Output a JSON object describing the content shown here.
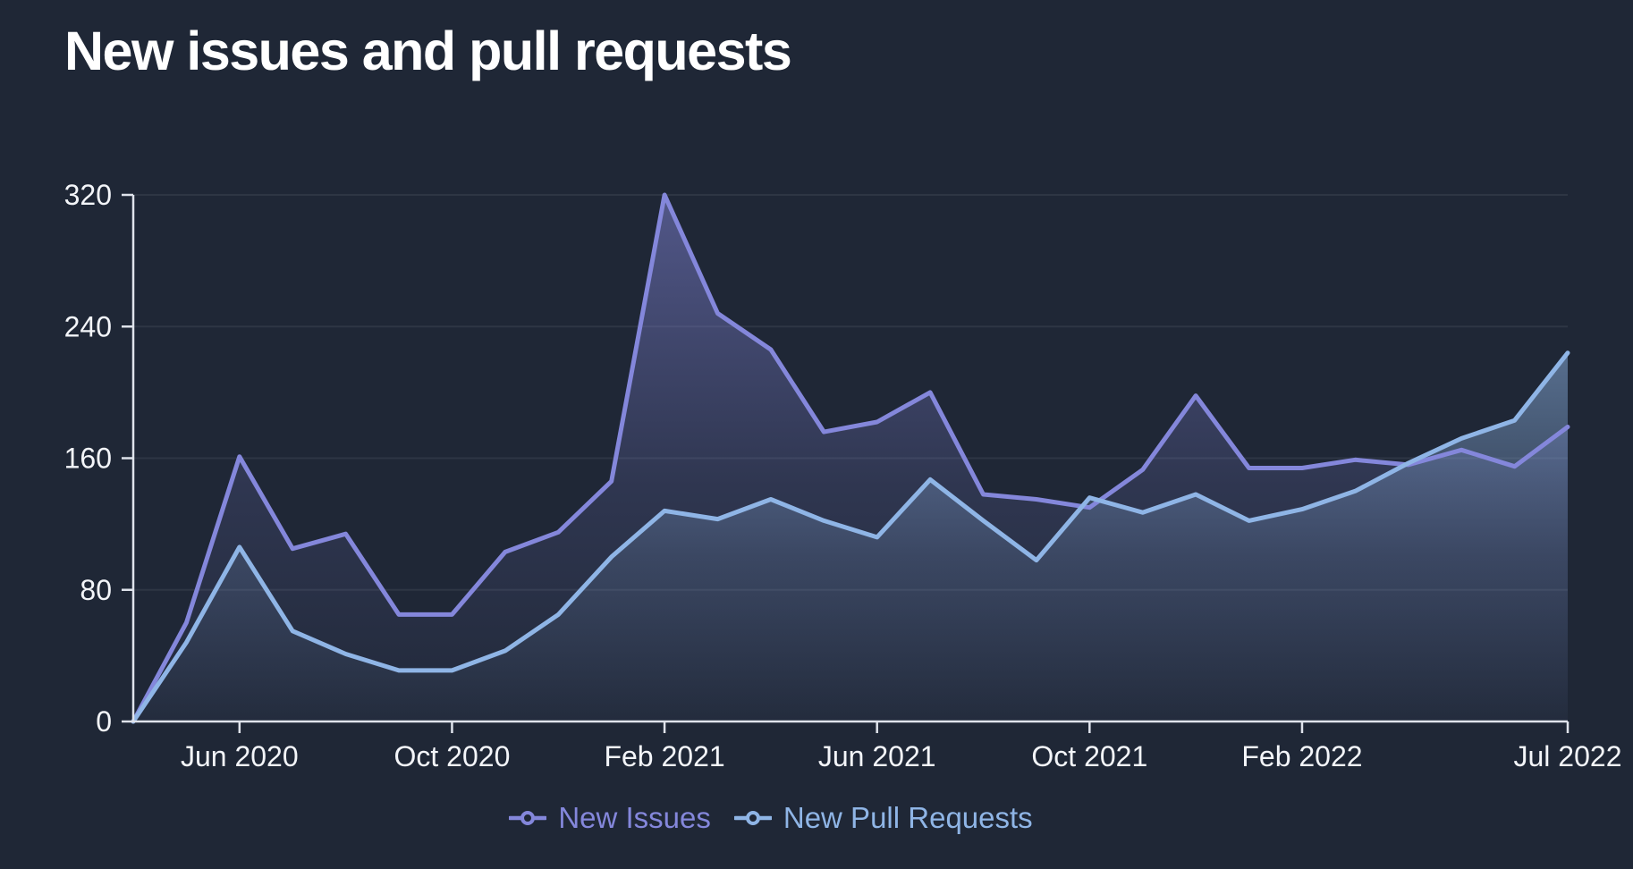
{
  "title": "New issues and pull requests",
  "colors": {
    "background": "#1F2736",
    "title": "#FFFFFF",
    "axis": "#DFE3EB",
    "axis_label": "#F3F5F9",
    "grid": "rgba(255,255,255,0.07)",
    "issues": "#8487DB",
    "pull_requests": "#8FB5E6"
  },
  "chart_data": {
    "type": "area",
    "title": "New issues and pull requests",
    "xlabel": "",
    "ylabel": "",
    "x": [
      "Apr 2020",
      "May 2020",
      "Jun 2020",
      "Jul 2020",
      "Aug 2020",
      "Sep 2020",
      "Oct 2020",
      "Nov 2020",
      "Dec 2020",
      "Jan 2021",
      "Feb 2021",
      "Mar 2021",
      "Apr 2021",
      "May 2021",
      "Jun 2021",
      "Jul 2021",
      "Aug 2021",
      "Sep 2021",
      "Oct 2021",
      "Nov 2021",
      "Dec 2021",
      "Jan 2022",
      "Feb 2022",
      "Mar 2022",
      "Apr 2022",
      "May 2022",
      "Jun 2022",
      "Jul 2022"
    ],
    "series": [
      {
        "name": "New Issues",
        "color": "#8487DB",
        "values": [
          0,
          60,
          161,
          105,
          114,
          65,
          65,
          103,
          115,
          146,
          320,
          248,
          226,
          176,
          182,
          200,
          138,
          135,
          130,
          153,
          198,
          154,
          154,
          159,
          156,
          165,
          155,
          179
        ]
      },
      {
        "name": "New Pull Requests",
        "color": "#8FB5E6",
        "values": [
          0,
          48,
          106,
          55,
          41,
          31,
          31,
          43,
          65,
          100,
          128,
          123,
          135,
          122,
          112,
          147,
          122,
          98,
          136,
          127,
          138,
          122,
          129,
          140,
          157,
          172,
          183,
          224
        ]
      }
    ],
    "ylim": [
      0,
      320
    ],
    "y_ticks": [
      0,
      80,
      160,
      240,
      320
    ],
    "x_tick_labels": [
      "Jun 2020",
      "Oct 2020",
      "Feb 2021",
      "Jun 2021",
      "Oct 2021",
      "Feb 2022",
      "Jul 2022"
    ],
    "x_tick_indices": [
      2,
      6,
      10,
      14,
      18,
      22,
      27
    ],
    "grid": "horizontal-only",
    "legend_position": "bottom"
  }
}
